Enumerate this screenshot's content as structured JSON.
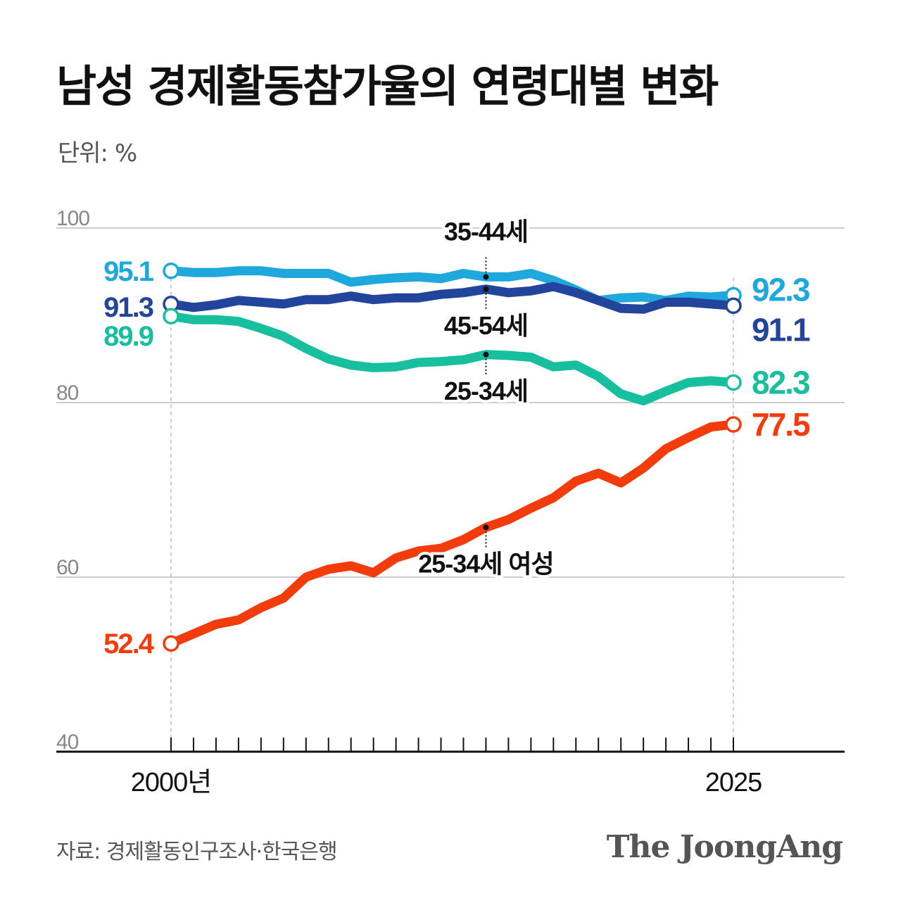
{
  "title": "남성 경제활동참가율의 연령대별 변화",
  "unit_label": "단위: %",
  "source": "자료: 경제활동인구조사·한국은행",
  "brand": "The JoongAng",
  "colors": {
    "male_35_44": "#1fa8dc",
    "male_45_54": "#22449a",
    "male_25_34": "#18bf9e",
    "female_25_34": "#f23c0c",
    "grid": "#cccccc",
    "axis": "#111111",
    "tick_label": "#888888"
  },
  "chart_data": {
    "type": "line",
    "title": "남성 경제활동참가율의 연령대별 변화",
    "ylabel": "단위: %",
    "xlabel": "",
    "ylim": [
      40,
      100
    ],
    "yticks": [
      40,
      60,
      80,
      100
    ],
    "x": [
      2000,
      2001,
      2002,
      2003,
      2004,
      2005,
      2006,
      2007,
      2008,
      2009,
      2010,
      2011,
      2012,
      2013,
      2014,
      2015,
      2016,
      2017,
      2018,
      2019,
      2020,
      2021,
      2022,
      2023,
      2024,
      2025
    ],
    "x_tick_labels": {
      "start": "2000년",
      "end": "2025"
    },
    "grid": true,
    "series": [
      {
        "key": "male_35_44",
        "name": "35-44세",
        "color": "#1fa8dc",
        "values": [
          95.1,
          94.9,
          94.9,
          95.1,
          95.1,
          94.8,
          94.8,
          94.8,
          93.8,
          94.1,
          94.3,
          94.4,
          94.2,
          94.8,
          94.4,
          94.4,
          94.8,
          94.0,
          92.9,
          91.7,
          92.0,
          92.1,
          91.7,
          92.2,
          92.1,
          92.3
        ],
        "start_label": "95.1",
        "end_label": "92.3",
        "label_year": 2014
      },
      {
        "key": "male_45_54",
        "name": "45-54세",
        "color": "#22449a",
        "values": [
          91.3,
          90.9,
          91.2,
          91.7,
          91.5,
          91.3,
          91.8,
          91.8,
          92.2,
          91.8,
          92.0,
          92.0,
          92.4,
          92.6,
          93.0,
          92.6,
          92.8,
          93.3,
          92.6,
          91.7,
          90.8,
          90.7,
          91.5,
          91.5,
          91.3,
          91.1
        ],
        "start_label": "91.3",
        "end_label": "91.1",
        "label_year": 2014
      },
      {
        "key": "male_25_34",
        "name": "25-34세",
        "color": "#18bf9e",
        "values": [
          89.9,
          89.5,
          89.5,
          89.3,
          88.5,
          87.6,
          86.2,
          85.0,
          84.3,
          84.0,
          84.1,
          84.6,
          84.7,
          84.9,
          85.5,
          85.4,
          85.2,
          84.1,
          84.3,
          83.0,
          81.0,
          80.2,
          81.3,
          82.3,
          82.5,
          82.3
        ],
        "start_label": "89.9",
        "end_label": "82.3",
        "label_year": 2014
      },
      {
        "key": "female_25_34",
        "name": "25-34세 여성",
        "color": "#f23c0c",
        "values": [
          52.4,
          53.5,
          54.6,
          55.1,
          56.5,
          57.6,
          60.0,
          60.9,
          61.3,
          60.5,
          62.2,
          63.0,
          63.3,
          64.3,
          65.7,
          66.6,
          67.9,
          69.1,
          71.0,
          71.9,
          70.8,
          72.5,
          74.7,
          76.0,
          77.2,
          77.5
        ],
        "start_label": "52.4",
        "end_label": "77.5",
        "label_year": 2014
      }
    ],
    "annotations": [
      {
        "series": "male_35_44",
        "text": "35-44세",
        "year": 2014,
        "position": "above"
      },
      {
        "series": "male_45_54",
        "text": "45-54세",
        "year": 2014,
        "position": "below"
      },
      {
        "series": "male_25_34",
        "text": "25-34세",
        "year": 2014,
        "position": "below"
      },
      {
        "series": "female_25_34",
        "text": "25-34세 여성",
        "year": 2014,
        "position": "below"
      }
    ]
  }
}
